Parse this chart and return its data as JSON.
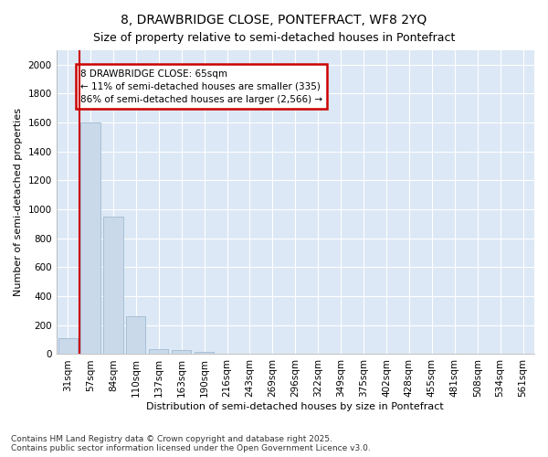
{
  "title": "8, DRAWBRIDGE CLOSE, PONTEFRACT, WF8 2YQ",
  "subtitle": "Size of property relative to semi-detached houses in Pontefract",
  "xlabel": "Distribution of semi-detached houses by size in Pontefract",
  "ylabel": "Number of semi-detached properties",
  "categories": [
    "31sqm",
    "57sqm",
    "84sqm",
    "110sqm",
    "137sqm",
    "163sqm",
    "190sqm",
    "216sqm",
    "243sqm",
    "269sqm",
    "296sqm",
    "322sqm",
    "349sqm",
    "375sqm",
    "402sqm",
    "428sqm",
    "455sqm",
    "481sqm",
    "508sqm",
    "534sqm",
    "561sqm"
  ],
  "values": [
    110,
    1600,
    950,
    260,
    35,
    30,
    15,
    4,
    1,
    0,
    0,
    0,
    0,
    0,
    0,
    0,
    0,
    0,
    0,
    0,
    0
  ],
  "bar_color": "#c9d9ea",
  "bar_edge_color": "#a8c0d6",
  "red_line_color": "#cc0000",
  "annotation_title": "8 DRAWBRIDGE CLOSE: 65sqm",
  "annotation_line1": "← 11% of semi-detached houses are smaller (335)",
  "annotation_line2": "86% of semi-detached houses are larger (2,566) →",
  "annotation_box_facecolor": "#ffffff",
  "annotation_box_edgecolor": "#cc0000",
  "ylim": [
    0,
    2100
  ],
  "yticks": [
    0,
    200,
    400,
    600,
    800,
    1000,
    1200,
    1400,
    1600,
    1800,
    2000
  ],
  "bg_color": "#ffffff",
  "plot_bg_color": "#dce8f5",
  "grid_color": "#ffffff",
  "footer1": "Contains HM Land Registry data © Crown copyright and database right 2025.",
  "footer2": "Contains public sector information licensed under the Open Government Licence v3.0.",
  "title_fontsize": 10,
  "subtitle_fontsize": 9,
  "axis_label_fontsize": 8,
  "tick_fontsize": 7.5,
  "footer_fontsize": 6.5
}
